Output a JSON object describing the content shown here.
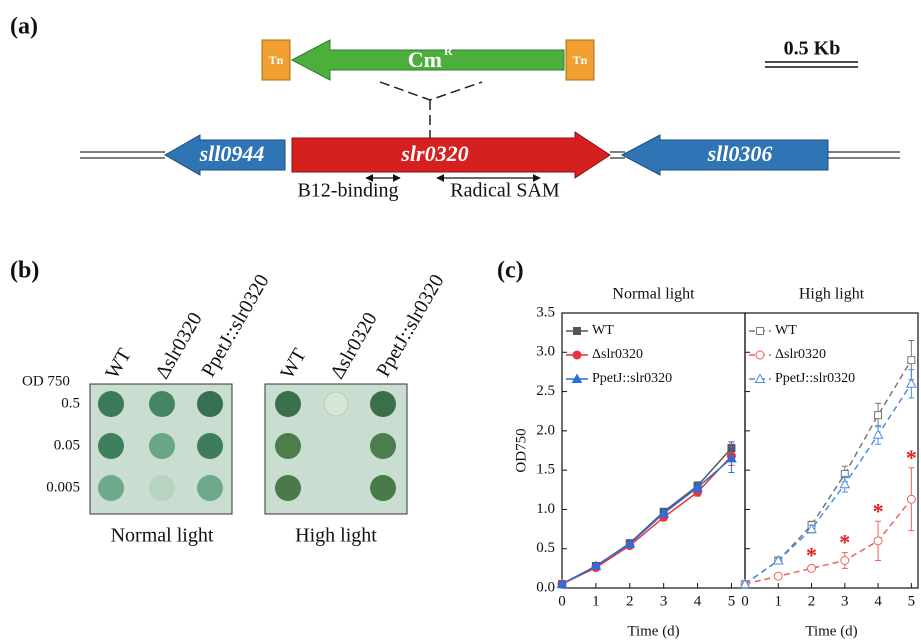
{
  "panel_a": {
    "label": "(a)",
    "cassette": {
      "label": "Cm",
      "superscript": "R",
      "flank_left": "Tn",
      "flank_right": "Tn"
    },
    "scale_bar": "0.5 Kb",
    "genes": [
      "sll0944",
      "slr0320",
      "sll0306"
    ],
    "domains": [
      "B12-binding",
      "Radical SAM"
    ]
  },
  "panel_b": {
    "label": "(b)",
    "row_header": "OD 750",
    "rows": [
      "0.5",
      "0.05",
      "0.005"
    ],
    "plates": [
      {
        "title": "Normal light",
        "columns": [
          "WT",
          "Δslr0320",
          "PpetJ::slr0320"
        ]
      },
      {
        "title": "High light",
        "columns": [
          "WT",
          "Δslr0320",
          "PpetJ::slr0320"
        ]
      }
    ]
  },
  "panel_c": {
    "label": "(c)"
  },
  "chart_data": [
    {
      "type": "line",
      "title": "Normal light",
      "x_label": "Time (d)",
      "y_label": "OD750",
      "x": [
        0,
        1,
        2,
        3,
        4,
        5
      ],
      "xlim": [
        0,
        5.4
      ],
      "xticks": [
        0,
        1,
        2,
        3,
        4,
        5
      ],
      "ylim": [
        0,
        3.5
      ],
      "yticks": [
        {
          "value": 0,
          "label": "0.0"
        },
        0.5,
        {
          "value": 1,
          "label": "1.0"
        },
        1.5,
        {
          "value": 2,
          "label": "2.0"
        },
        2.5,
        {
          "value": 3,
          "label": "3.0"
        },
        3.5
      ],
      "line_style": "solid",
      "marker_fill": "filled",
      "series": [
        {
          "name": "WT",
          "color": "#555555",
          "marker": "square",
          "values": [
            0.05,
            0.28,
            0.57,
            0.97,
            1.3,
            1.78
          ],
          "errors": [
            0.01,
            0.02,
            0.03,
            0.04,
            0.05,
            0.08
          ]
        },
        {
          "name": "Δslr0320",
          "color": "#e8333a",
          "marker": "circle",
          "values": [
            0.05,
            0.26,
            0.54,
            0.9,
            1.22,
            1.68
          ],
          "errors": [
            0.01,
            0.02,
            0.03,
            0.04,
            0.05,
            0.12
          ]
        },
        {
          "name": "PpetJ::slr0320",
          "color": "#2a6fdb",
          "marker": "triangle",
          "values": [
            0.05,
            0.28,
            0.56,
            0.95,
            1.28,
            1.65
          ],
          "errors": [
            0.01,
            0.02,
            0.03,
            0.04,
            0.06,
            0.18
          ]
        }
      ]
    },
    {
      "type": "line",
      "title": "High light",
      "x_label": "Time (d)",
      "x": [
        0,
        1,
        2,
        3,
        4,
        5
      ],
      "xlim": [
        0,
        5.2
      ],
      "xticks": [
        0,
        1,
        2,
        3,
        4,
        5
      ],
      "ylim": [
        0,
        3.5
      ],
      "yticks": [
        0,
        0.5,
        1,
        1.5,
        2,
        2.5,
        3,
        3.5
      ],
      "line_style": "dashed",
      "marker_fill": "none",
      "series": [
        {
          "name": "WT",
          "color": "#777777",
          "marker": "square",
          "values": [
            0.05,
            0.35,
            0.8,
            1.45,
            2.2,
            2.9
          ],
          "errors": [
            0.01,
            0.02,
            0.05,
            0.1,
            0.15,
            0.25
          ]
        },
        {
          "name": "Δslr0320",
          "color": "#f06060",
          "marker": "circle",
          "values": [
            0.05,
            0.15,
            0.25,
            0.35,
            0.6,
            1.13
          ],
          "errors": [
            0.01,
            0.03,
            0.04,
            0.1,
            0.25,
            0.4
          ]
        },
        {
          "name": "PpetJ::slr0320",
          "color": "#4a8ee0",
          "marker": "triangle",
          "values": [
            0.05,
            0.35,
            0.75,
            1.32,
            1.95,
            2.6
          ],
          "errors": [
            0.01,
            0.03,
            0.05,
            0.1,
            0.12,
            0.18
          ]
        }
      ],
      "markers": [
        {
          "x": 2,
          "text": "*"
        },
        {
          "x": 3,
          "text": "*"
        },
        {
          "x": 4,
          "text": "*"
        },
        {
          "x": 5,
          "text": "*"
        }
      ]
    }
  ]
}
